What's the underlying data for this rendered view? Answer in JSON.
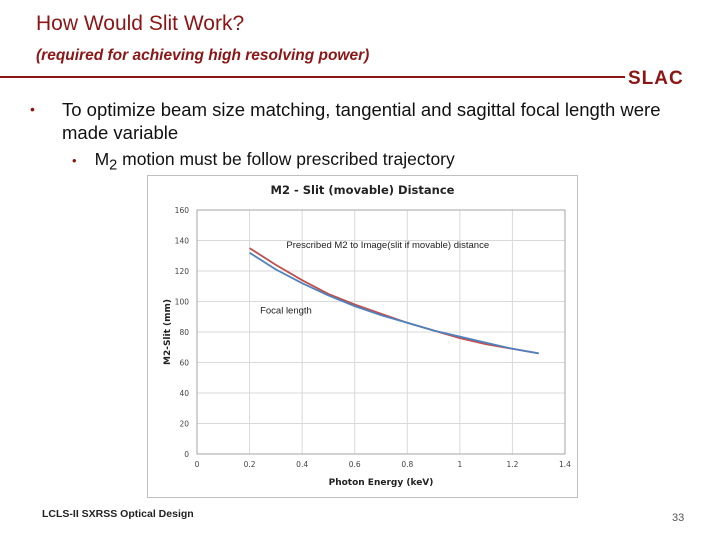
{
  "slide": {
    "title": "How Would Slit Work?",
    "subtitle": "(required for achieving high resolving power)",
    "logo": "SLAC",
    "bullet1": "To optimize beam size matching, tangential and sagittal focal length were made variable",
    "bullet2_prefix": "M",
    "bullet2_sub": "2",
    "bullet2_rest": " motion must be follow prescribed trajectory",
    "footer": "LCLS-II SXRSS Optical Design",
    "page_number": "33"
  },
  "chart_data": {
    "type": "line",
    "title": "M2 - Slit (movable) Distance",
    "xlabel": "Photon Energy (keV)",
    "ylabel": "M2-Slit (mm)",
    "xlim": [
      0,
      1.4
    ],
    "ylim": [
      0,
      160
    ],
    "x_ticks": [
      "0",
      "0.2",
      "0.4",
      "0.6",
      "0.8",
      "1",
      "1.2",
      "1.4"
    ],
    "y_ticks": [
      "0",
      "20",
      "40",
      "60",
      "80",
      "100",
      "120",
      "140",
      "160"
    ],
    "grid": true,
    "series": [
      {
        "name": "Prescribed M2 to Image(slit if movable) distance",
        "color": "#c0504d",
        "x": [
          0.2,
          0.3,
          0.4,
          0.5,
          0.6,
          0.7,
          0.8,
          0.9,
          1.0,
          1.1,
          1.2,
          1.3
        ],
        "y": [
          135,
          124,
          114,
          105,
          98,
          92,
          86,
          81,
          76,
          72,
          69,
          66
        ]
      },
      {
        "name": "Focal length",
        "color": "#4f81bd",
        "x": [
          0.2,
          0.3,
          0.4,
          0.5,
          0.6,
          0.7,
          0.8,
          0.9,
          1.0,
          1.1,
          1.2,
          1.3
        ],
        "y": [
          132,
          121,
          112,
          104,
          97,
          91,
          86,
          81,
          77,
          73,
          69,
          66
        ]
      }
    ],
    "annotations": [
      {
        "text": "Prescribed M2 to Image(slit if movable) distance",
        "x": 0.34,
        "y": 135
      },
      {
        "text": "Focal length",
        "x": 0.24,
        "y": 92
      }
    ]
  }
}
